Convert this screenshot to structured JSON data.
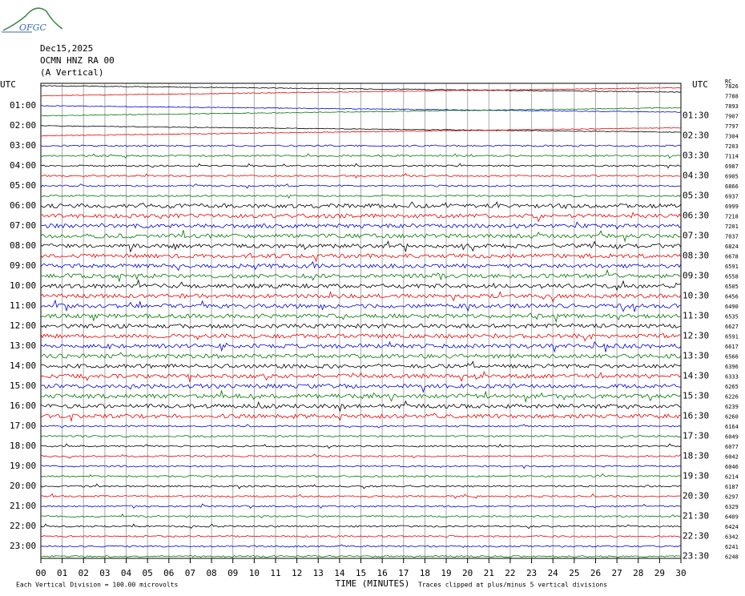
{
  "header": {
    "logo": "OFGC",
    "date": "Dec15,2025",
    "station": "OCMN HNZ RA 00",
    "component": "(A Vertical)"
  },
  "left_axis": {
    "title": "UTC",
    "labels": [
      "01:00",
      "02:00",
      "03:00",
      "04:00",
      "05:00",
      "06:00",
      "07:00",
      "08:00",
      "09:00",
      "10:00",
      "11:00",
      "12:00",
      "13:00",
      "14:00",
      "15:00",
      "16:00",
      "17:00",
      "18:00",
      "19:00",
      "20:00",
      "21:00",
      "22:00",
      "23:00"
    ]
  },
  "right_axis": {
    "title": "UTC",
    "labels": [
      "01:30",
      "02:30",
      "03:30",
      "04:30",
      "05:30",
      "06:30",
      "07:30",
      "08:30",
      "09:30",
      "10:30",
      "11:30",
      "12:30",
      "13:30",
      "14:30",
      "15:30",
      "16:30",
      "17:30",
      "18:30",
      "19:30",
      "20:30",
      "21:30",
      "22:30",
      "23:30"
    ]
  },
  "right_values": {
    "title": "RC",
    "values": [
      7826,
      7788,
      7893,
      7907,
      7797,
      7304,
      7203,
      7114,
      6987,
      6905,
      6866,
      6937,
      6999,
      7218,
      7201,
      7037,
      6824,
      6678,
      6591,
      6558,
      6505,
      6456,
      6490,
      6535,
      6627,
      6591,
      6617,
      6566,
      6396,
      6333,
      6265,
      6226,
      6239,
      6260,
      6164,
      6049,
      6077,
      6042,
      6046,
      6214,
      6187,
      6297,
      6329,
      6409,
      6424,
      6342,
      6241,
      6248
    ]
  },
  "x_axis": {
    "title": "TIME (MINUTES)",
    "ticks": [
      "00",
      "01",
      "02",
      "03",
      "04",
      "05",
      "06",
      "07",
      "08",
      "09",
      "10",
      "11",
      "12",
      "13",
      "14",
      "15",
      "16",
      "17",
      "18",
      "19",
      "20",
      "21",
      "22",
      "23",
      "24",
      "25",
      "26",
      "27",
      "28",
      "29",
      "30"
    ]
  },
  "footer": {
    "scale": "Each Vertical Division =  100.00 microvolts",
    "clip": "Traces clipped at plus/minus 5 vertical divisions"
  }
}
